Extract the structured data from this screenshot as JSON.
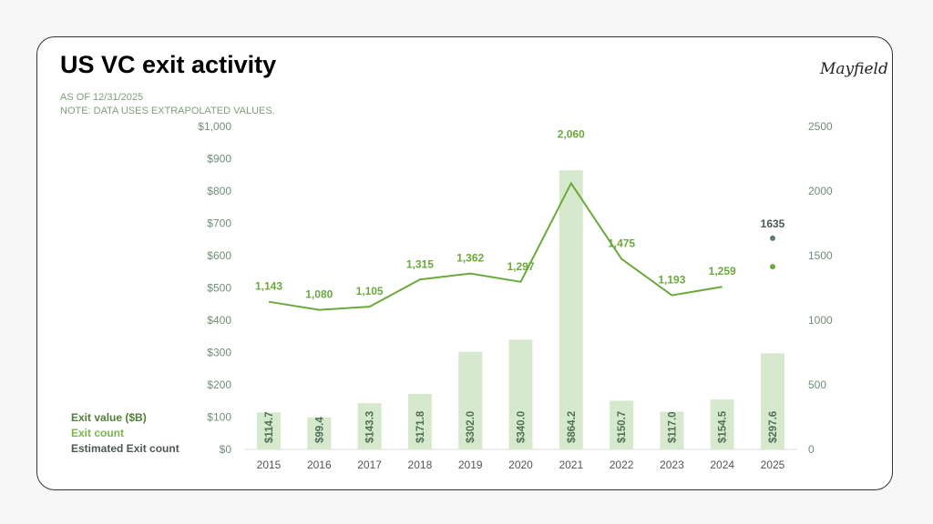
{
  "title": "US VC exit activity",
  "subtitle_date": "AS OF 12/31/2025",
  "subtitle_note": "NOTE: DATA USES EXTRAPOLATED VALUES.",
  "logo": "Mayfield",
  "colors": {
    "bar": "#d6e9cd",
    "line": "#6aa93b",
    "estimated": "#5e7a6a",
    "axis_text": "#6f8f76"
  },
  "legend": [
    "Exit value ($B)",
    "Exit count",
    "Estimated Exit count"
  ],
  "chart_data": {
    "type": "bar",
    "categories": [
      "2015",
      "2016",
      "2017",
      "2018",
      "2019",
      "2020",
      "2021",
      "2022",
      "2023",
      "2024",
      "2025"
    ],
    "series": [
      {
        "name": "Exit value ($B)",
        "type": "bar",
        "axis": "left",
        "values": [
          114.7,
          99.4,
          143.3,
          171.8,
          302.0,
          340.0,
          864.2,
          150.7,
          117.0,
          154.5,
          297.6
        ],
        "labels": [
          "$114.7",
          "$99.4",
          "$143.3",
          "$171.8",
          "$302.0",
          "$340.0",
          "$864.2",
          "$150.7",
          "$117.0",
          "$154.5",
          "$297.6"
        ]
      },
      {
        "name": "Exit count",
        "type": "line",
        "axis": "right",
        "values": [
          1143,
          1080,
          1105,
          1315,
          1362,
          1297,
          2060,
          1475,
          1193,
          1259,
          null
        ],
        "labels": [
          "1,143",
          "1,080",
          "1,105",
          "1,315",
          "1,362",
          "1,297",
          "2,060",
          "1,475",
          "1,193",
          "1,259",
          ""
        ],
        "point_2025": 1415
      },
      {
        "name": "Estimated Exit count",
        "type": "point",
        "axis": "right",
        "category": "2025",
        "value": 1635,
        "label": "1635"
      }
    ],
    "left_axis": {
      "ticks": [
        "$0",
        "$100",
        "$200",
        "$300",
        "$400",
        "$500",
        "$600",
        "$700",
        "$800",
        "$900",
        "$1,000"
      ],
      "range": [
        0,
        1000
      ]
    },
    "right_axis": {
      "ticks": [
        "0",
        "500",
        "1000",
        "1500",
        "2000",
        "2500"
      ],
      "range": [
        0,
        2500
      ]
    },
    "grid": false,
    "legend_placement": "bottom-left"
  }
}
